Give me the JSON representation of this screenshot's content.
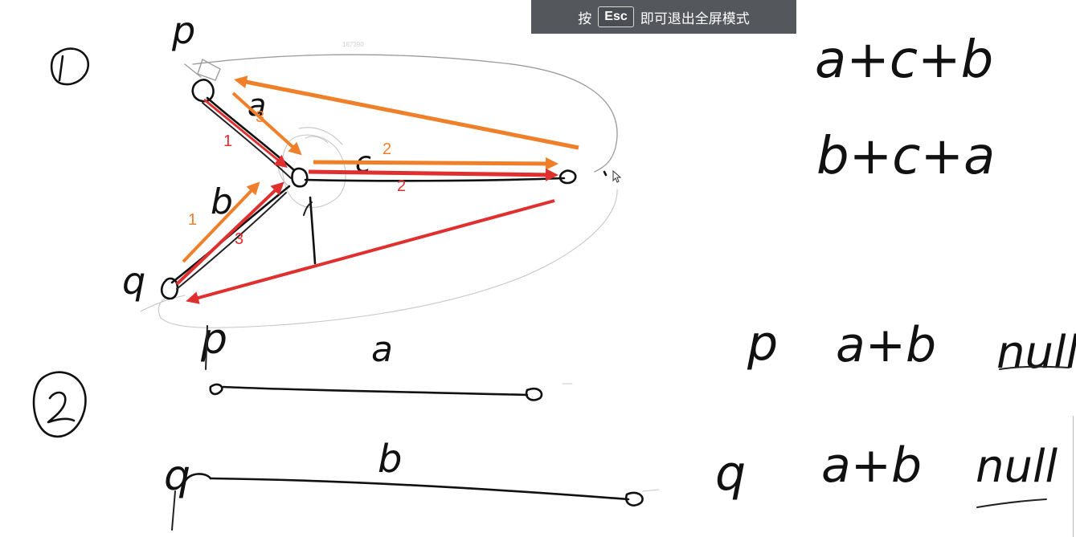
{
  "banner": {
    "prefix": "按",
    "key": "Esc",
    "suffix": "即可退出全屏模式"
  },
  "watermark": "187390",
  "diagram1": {
    "marker": "①",
    "node_p": "p",
    "node_q": "q",
    "edge_a": "a",
    "edge_b": "b",
    "edge_c": "c",
    "red_labels": [
      "1",
      "2",
      "3"
    ],
    "orange_labels": [
      "1",
      "2",
      "3"
    ]
  },
  "diagram2": {
    "marker": "②",
    "row_p": {
      "node": "p",
      "edge": "a"
    },
    "row_q": {
      "node": "q",
      "edge": "b"
    }
  },
  "right_notes": {
    "seq1": "a+c+b",
    "seq2": "b+c+a",
    "p_label": "p",
    "p_seq": "a+b",
    "p_null": "null",
    "q_label": "q",
    "q_seq": "a+b",
    "q_null": "null"
  },
  "colors": {
    "red": "#e02f2f",
    "orange": "#f07f2a",
    "banner_bg": "#54575c"
  }
}
